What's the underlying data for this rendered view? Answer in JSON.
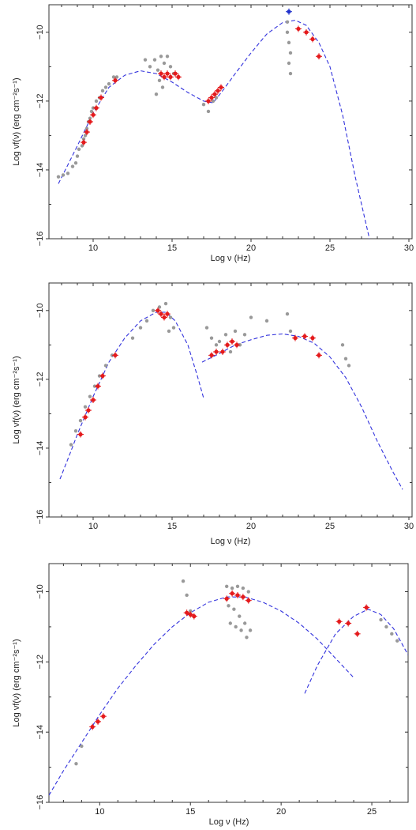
{
  "colors": {
    "archival": "#999999",
    "simultaneous": "#e41a1c",
    "model": "#3333dd",
    "gamma_highlight": "#2233cc"
  },
  "chart_data": [
    {
      "type": "scatter",
      "title": "",
      "xlabel": "Log ν (Hz)",
      "ylabel": "Log νf(ν) (erg cm⁻²s⁻¹)",
      "xlim": [
        7.2,
        30.2
      ],
      "ylim": [
        -16,
        -9.2
      ],
      "xticks": [
        10,
        15,
        20,
        25,
        30
      ],
      "yticks": [
        -10,
        -12,
        -14,
        -16
      ],
      "grid": false,
      "series": [
        {
          "role": "archival",
          "points": [
            [
              7.8,
              -14.2
            ],
            [
              8.1,
              -14.15
            ],
            [
              8.4,
              -14.1
            ],
            [
              8.7,
              -13.9
            ],
            [
              8.9,
              -13.8
            ],
            [
              9.0,
              -13.6
            ],
            [
              9.1,
              -13.4
            ],
            [
              9.3,
              -13.3
            ],
            [
              9.4,
              -13.1
            ],
            [
              9.5,
              -13.0
            ],
            [
              9.6,
              -12.8
            ],
            [
              9.7,
              -12.6
            ],
            [
              9.8,
              -12.5
            ],
            [
              9.9,
              -12.3
            ],
            [
              10.0,
              -12.2
            ],
            [
              10.2,
              -12.0
            ],
            [
              10.4,
              -11.9
            ],
            [
              10.6,
              -11.7
            ],
            [
              10.8,
              -11.6
            ],
            [
              11.0,
              -11.5
            ],
            [
              11.3,
              -11.3
            ],
            [
              11.5,
              -11.3
            ],
            [
              13.3,
              -10.8
            ],
            [
              13.6,
              -11.0
            ],
            [
              13.9,
              -10.8
            ],
            [
              14.1,
              -11.1
            ],
            [
              14.3,
              -10.7
            ],
            [
              14.5,
              -10.9
            ],
            [
              14.7,
              -10.7
            ],
            [
              14.9,
              -11.0
            ],
            [
              15.1,
              -11.2
            ],
            [
              14.2,
              -11.4
            ],
            [
              14.4,
              -11.6
            ],
            [
              14.0,
              -11.8
            ],
            [
              17.0,
              -12.1
            ],
            [
              17.3,
              -12.3
            ],
            [
              17.6,
              -12.0
            ],
            [
              17.8,
              -11.9
            ],
            [
              22.3,
              -9.7
            ],
            [
              22.3,
              -10.0
            ],
            [
              22.4,
              -10.3
            ],
            [
              22.5,
              -10.6
            ],
            [
              22.4,
              -10.9
            ],
            [
              22.5,
              -11.2
            ]
          ]
        },
        {
          "role": "simultaneous",
          "points": [
            [
              9.4,
              -13.2
            ],
            [
              9.6,
              -12.9
            ],
            [
              9.8,
              -12.6
            ],
            [
              10.0,
              -12.4
            ],
            [
              10.2,
              -12.2
            ],
            [
              10.5,
              -11.9
            ],
            [
              11.4,
              -11.4
            ],
            [
              14.3,
              -11.2
            ],
            [
              14.5,
              -11.3
            ],
            [
              14.7,
              -11.2
            ],
            [
              14.9,
              -11.3
            ],
            [
              15.2,
              -11.2
            ],
            [
              15.4,
              -11.3
            ],
            [
              17.3,
              -12.0
            ],
            [
              17.5,
              -11.9
            ],
            [
              17.7,
              -11.8
            ],
            [
              17.9,
              -11.7
            ],
            [
              18.1,
              -11.6
            ],
            [
              23.0,
              -9.9
            ],
            [
              23.5,
              -10.0
            ],
            [
              23.9,
              -10.2
            ],
            [
              24.3,
              -10.7
            ]
          ]
        },
        {
          "role": "highlight",
          "points": [
            [
              22.4,
              -9.4
            ]
          ]
        }
      ],
      "model_curves": [
        {
          "points": [
            [
              7.8,
              -14.4
            ],
            [
              9.0,
              -13.3
            ],
            [
              10.0,
              -12.35
            ],
            [
              11.0,
              -11.6
            ],
            [
              12.0,
              -11.25
            ],
            [
              13.0,
              -11.12
            ],
            [
              14.0,
              -11.2
            ],
            [
              15.0,
              -11.45
            ],
            [
              16.0,
              -11.75
            ],
            [
              17.0,
              -12.0
            ],
            [
              17.6,
              -12.05
            ],
            [
              18.2,
              -11.7
            ],
            [
              19.0,
              -11.2
            ],
            [
              20.0,
              -10.6
            ],
            [
              21.0,
              -10.05
            ],
            [
              22.0,
              -9.72
            ],
            [
              22.8,
              -9.65
            ],
            [
              23.5,
              -9.8
            ],
            [
              24.3,
              -10.3
            ],
            [
              25.0,
              -11.0
            ],
            [
              25.8,
              -12.4
            ],
            [
              26.6,
              -14.2
            ],
            [
              27.5,
              -16.0
            ]
          ]
        }
      ]
    },
    {
      "type": "scatter",
      "title": "",
      "xlabel": "Log ν (Hz)",
      "ylabel": "Log νf(ν) (erg cm⁻²s⁻¹)",
      "xlim": [
        7.2,
        30.2
      ],
      "ylim": [
        -16,
        -9.2
      ],
      "xticks": [
        10,
        15,
        20,
        25,
        30
      ],
      "yticks": [
        -10,
        -12,
        -14,
        -16
      ],
      "grid": false,
      "series": [
        {
          "role": "archival",
          "points": [
            [
              8.6,
              -13.9
            ],
            [
              8.9,
              -13.5
            ],
            [
              9.2,
              -13.2
            ],
            [
              9.5,
              -12.8
            ],
            [
              9.8,
              -12.5
            ],
            [
              10.1,
              -12.2
            ],
            [
              10.4,
              -11.9
            ],
            [
              10.8,
              -11.6
            ],
            [
              11.2,
              -11.3
            ],
            [
              12.5,
              -10.8
            ],
            [
              13.0,
              -10.5
            ],
            [
              13.4,
              -10.3
            ],
            [
              13.8,
              -10.0
            ],
            [
              14.2,
              -9.9
            ],
            [
              14.6,
              -9.8
            ],
            [
              14.9,
              -10.2
            ],
            [
              15.1,
              -10.5
            ],
            [
              14.8,
              -10.6
            ],
            [
              17.2,
              -10.5
            ],
            [
              17.5,
              -10.8
            ],
            [
              17.8,
              -11.0
            ],
            [
              18.0,
              -10.9
            ],
            [
              18.4,
              -10.7
            ],
            [
              18.7,
              -11.2
            ],
            [
              19.0,
              -10.6
            ],
            [
              19.3,
              -11.0
            ],
            [
              19.6,
              -10.7
            ],
            [
              20.0,
              -10.2
            ],
            [
              21.0,
              -10.3
            ],
            [
              22.3,
              -10.1
            ],
            [
              22.5,
              -10.6
            ],
            [
              25.8,
              -11.0
            ],
            [
              26.0,
              -11.4
            ],
            [
              26.2,
              -11.6
            ]
          ]
        },
        {
          "role": "simultaneous",
          "points": [
            [
              9.2,
              -13.6
            ],
            [
              9.5,
              -13.1
            ],
            [
              9.7,
              -12.9
            ],
            [
              10.0,
              -12.6
            ],
            [
              10.3,
              -12.2
            ],
            [
              10.6,
              -11.9
            ],
            [
              11.4,
              -11.3
            ],
            [
              14.1,
              -10.0
            ],
            [
              14.3,
              -10.1
            ],
            [
              14.5,
              -10.2
            ],
            [
              14.7,
              -10.1
            ],
            [
              17.5,
              -11.3
            ],
            [
              17.8,
              -11.2
            ],
            [
              18.2,
              -11.2
            ],
            [
              18.5,
              -11.0
            ],
            [
              18.8,
              -10.9
            ],
            [
              19.1,
              -11.0
            ],
            [
              22.8,
              -10.8
            ],
            [
              23.4,
              -10.75
            ],
            [
              23.9,
              -10.8
            ],
            [
              24.3,
              -11.3
            ]
          ]
        }
      ],
      "model_curves": [
        {
          "points": [
            [
              7.9,
              -14.9
            ],
            [
              8.5,
              -14.2
            ],
            [
              9.0,
              -13.6
            ],
            [
              10.0,
              -12.5
            ],
            [
              11.0,
              -11.5
            ],
            [
              12.0,
              -10.8
            ],
            [
              13.0,
              -10.3
            ],
            [
              14.0,
              -10.05
            ],
            [
              14.6,
              -10.05
            ],
            [
              15.2,
              -10.3
            ],
            [
              16.0,
              -11.0
            ],
            [
              16.6,
              -11.9
            ],
            [
              17.0,
              -12.55
            ]
          ]
        },
        {
          "points": [
            [
              16.9,
              -11.5
            ],
            [
              18.0,
              -11.25
            ],
            [
              19.0,
              -11.0
            ],
            [
              20.0,
              -10.85
            ],
            [
              21.0,
              -10.72
            ],
            [
              22.0,
              -10.68
            ],
            [
              23.0,
              -10.75
            ],
            [
              24.0,
              -10.95
            ],
            [
              25.0,
              -11.35
            ],
            [
              26.0,
              -11.95
            ],
            [
              27.0,
              -12.8
            ],
            [
              28.0,
              -13.8
            ],
            [
              29.0,
              -14.7
            ],
            [
              29.6,
              -15.2
            ]
          ]
        }
      ]
    },
    {
      "type": "scatter",
      "title": "",
      "xlabel": "Log ν (Hz)",
      "ylabel": "Log νf(ν) (erg cm⁻²s⁻¹)",
      "xlim": [
        7.2,
        27.0
      ],
      "ylim": [
        -16,
        -9.2
      ],
      "xticks": [
        10,
        15,
        20,
        25
      ],
      "yticks": [
        -10,
        -12,
        -14,
        -16
      ],
      "grid": false,
      "series": [
        {
          "role": "archival",
          "points": [
            [
              8.7,
              -14.9
            ],
            [
              9.0,
              -14.4
            ],
            [
              14.6,
              -9.7
            ],
            [
              14.8,
              -10.1
            ],
            [
              15.0,
              -10.55
            ],
            [
              17.0,
              -9.85
            ],
            [
              17.3,
              -9.9
            ],
            [
              17.6,
              -9.85
            ],
            [
              17.9,
              -9.9
            ],
            [
              18.2,
              -10.0
            ],
            [
              17.1,
              -10.4
            ],
            [
              17.4,
              -10.5
            ],
            [
              17.7,
              -10.7
            ],
            [
              18.0,
              -10.9
            ],
            [
              18.3,
              -11.1
            ],
            [
              17.2,
              -10.9
            ],
            [
              17.5,
              -11.0
            ],
            [
              17.8,
              -11.1
            ],
            [
              18.1,
              -11.3
            ],
            [
              25.5,
              -10.8
            ],
            [
              25.8,
              -11.0
            ],
            [
              26.1,
              -11.2
            ],
            [
              26.4,
              -11.4
            ]
          ]
        },
        {
          "role": "simultaneous",
          "points": [
            [
              9.6,
              -13.85
            ],
            [
              9.9,
              -13.7
            ],
            [
              10.2,
              -13.55
            ],
            [
              14.8,
              -10.6
            ],
            [
              15.0,
              -10.65
            ],
            [
              15.2,
              -10.7
            ],
            [
              17.0,
              -10.2
            ],
            [
              17.3,
              -10.05
            ],
            [
              17.6,
              -10.1
            ],
            [
              17.9,
              -10.15
            ],
            [
              18.2,
              -10.25
            ],
            [
              23.2,
              -10.85
            ],
            [
              23.7,
              -10.9
            ],
            [
              24.2,
              -11.2
            ],
            [
              24.7,
              -10.45
            ]
          ]
        }
      ],
      "model_curves": [
        {
          "points": [
            [
              7.2,
              -15.8
            ],
            [
              8.0,
              -15.1
            ],
            [
              9.0,
              -14.3
            ],
            [
              10.0,
              -13.5
            ],
            [
              11.0,
              -12.75
            ],
            [
              12.0,
              -12.1
            ],
            [
              13.0,
              -11.5
            ],
            [
              14.0,
              -11.0
            ],
            [
              15.0,
              -10.6
            ],
            [
              16.0,
              -10.3
            ],
            [
              17.0,
              -10.15
            ],
            [
              18.0,
              -10.15
            ],
            [
              19.0,
              -10.3
            ],
            [
              20.0,
              -10.55
            ],
            [
              21.0,
              -10.9
            ],
            [
              22.0,
              -11.35
            ],
            [
              23.0,
              -11.9
            ],
            [
              24.0,
              -12.45
            ]
          ]
        },
        {
          "points": [
            [
              21.3,
              -12.9
            ],
            [
              22.0,
              -12.1
            ],
            [
              23.0,
              -11.2
            ],
            [
              24.0,
              -10.7
            ],
            [
              24.8,
              -10.5
            ],
            [
              25.5,
              -10.65
            ],
            [
              26.2,
              -11.05
            ],
            [
              27.0,
              -11.8
            ]
          ]
        }
      ]
    }
  ]
}
